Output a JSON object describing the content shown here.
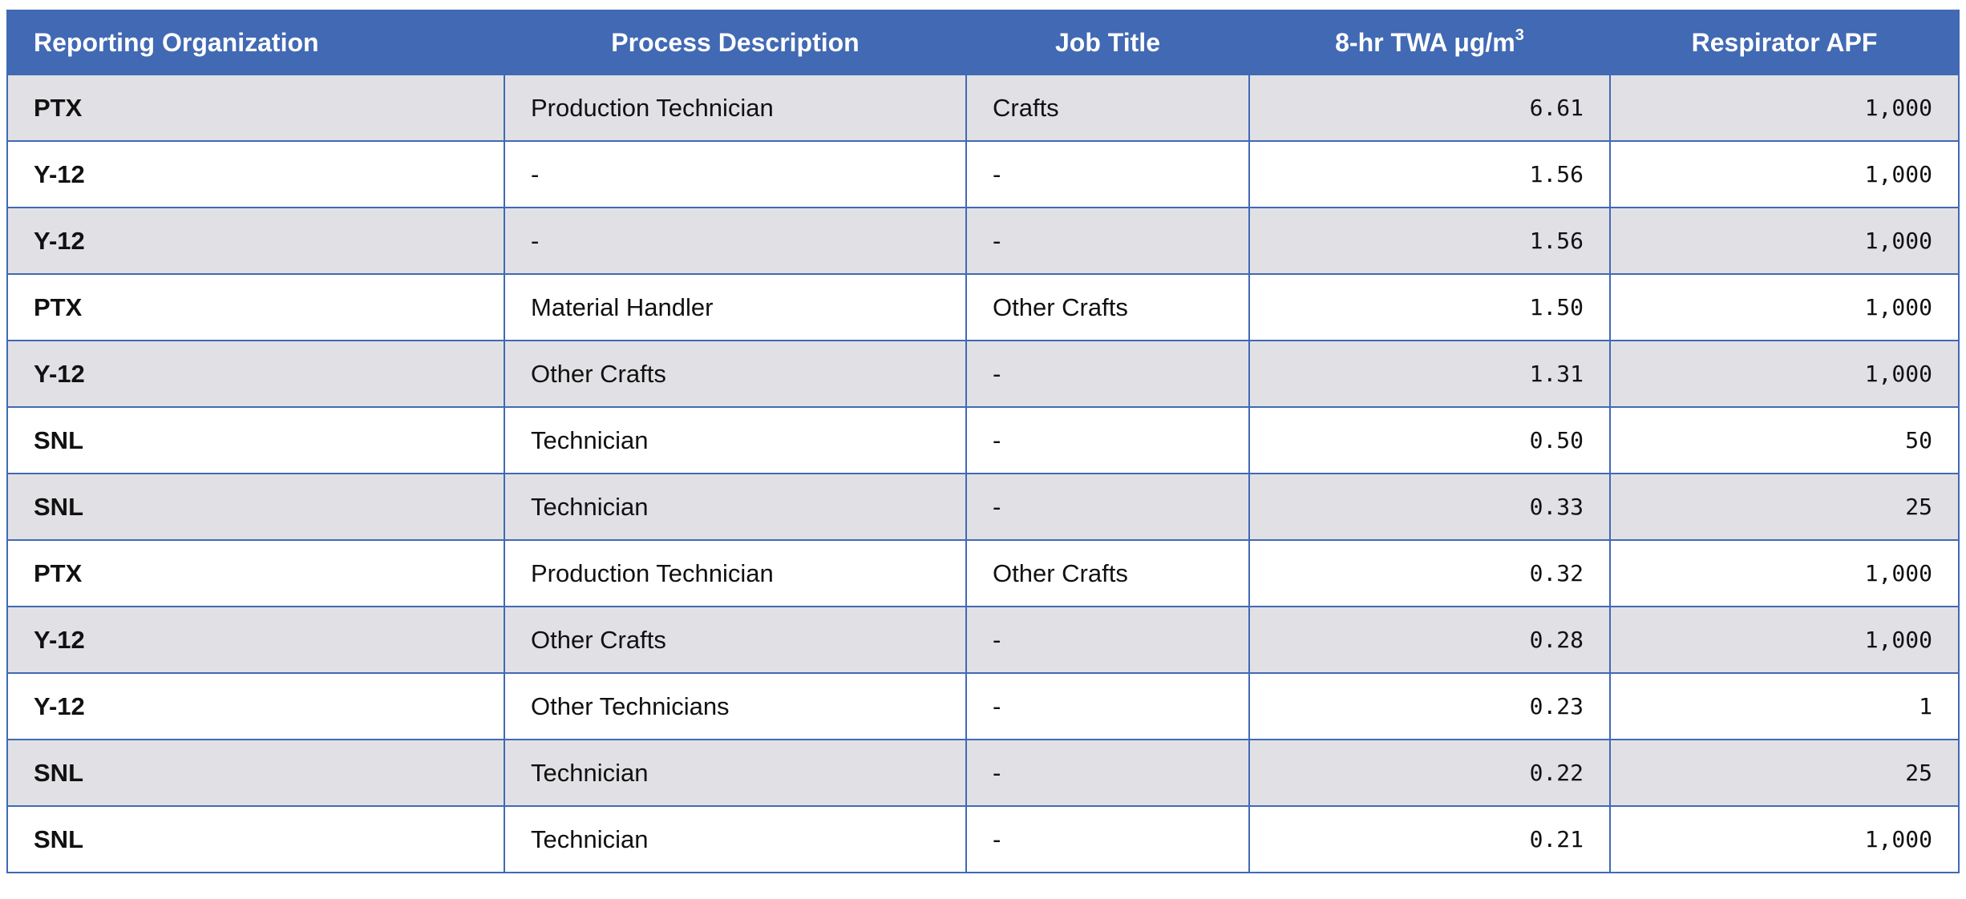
{
  "table": {
    "headers": {
      "org": "Reporting Organization",
      "process": "Process Description",
      "job": "Job Title",
      "twa_prefix": "8-hr TWA μg/m",
      "twa_sup": "3",
      "apf": "Respirator APF"
    },
    "rows": [
      {
        "org": "PTX",
        "process": "Production Technician",
        "job": "Crafts",
        "twa": "6.61",
        "apf": "1,000"
      },
      {
        "org": "Y-12",
        "process": "-",
        "job": "-",
        "twa": "1.56",
        "apf": "1,000"
      },
      {
        "org": "Y-12",
        "process": "-",
        "job": "-",
        "twa": "1.56",
        "apf": "1,000"
      },
      {
        "org": "PTX",
        "process": "Material Handler",
        "job": "Other Crafts",
        "twa": "1.50",
        "apf": "1,000"
      },
      {
        "org": "Y-12",
        "process": "Other Crafts",
        "job": "-",
        "twa": "1.31",
        "apf": "1,000"
      },
      {
        "org": "SNL",
        "process": "Technician",
        "job": "-",
        "twa": "0.50",
        "apf": "50"
      },
      {
        "org": "SNL",
        "process": "Technician",
        "job": "-",
        "twa": "0.33",
        "apf": "25"
      },
      {
        "org": "PTX",
        "process": "Production Technician",
        "job": "Other Crafts",
        "twa": "0.32",
        "apf": "1,000"
      },
      {
        "org": "Y-12",
        "process": "Other Crafts",
        "job": "-",
        "twa": "0.28",
        "apf": "1,000"
      },
      {
        "org": "Y-12",
        "process": "Other Technicians",
        "job": "-",
        "twa": "0.23",
        "apf": "1"
      },
      {
        "org": "SNL",
        "process": "Technician",
        "job": "-",
        "twa": "0.22",
        "apf": "25"
      },
      {
        "org": "SNL",
        "process": "Technician",
        "job": "-",
        "twa": "0.21",
        "apf": "1,000"
      }
    ]
  },
  "colors": {
    "header_bg": "#4169b4",
    "stripe_bg": "#e1e1e5",
    "border": "#4169b4"
  }
}
